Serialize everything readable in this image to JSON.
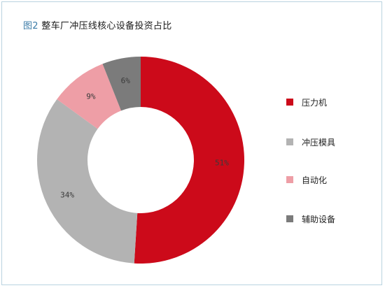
{
  "title": {
    "figure_label": "图2",
    "text": "整车厂冲压线核心设备投资占比"
  },
  "chart_data": {
    "type": "pie",
    "variant": "donut",
    "start": "12 o'clock, clockwise",
    "slices": [
      {
        "label": "压力机",
        "value": 51,
        "display": "51%",
        "color": "#cc0a1a"
      },
      {
        "label": "冲压模具",
        "value": 34,
        "display": "34%",
        "color": "#b3b3b3"
      },
      {
        "label": "自动化",
        "value": 9,
        "display": "9%",
        "color": "#ee9ea6"
      },
      {
        "label": "辅助设备",
        "value": 6,
        "display": "6%",
        "color": "#7b7b7b"
      }
    ],
    "legend": {
      "placement": "right"
    }
  }
}
